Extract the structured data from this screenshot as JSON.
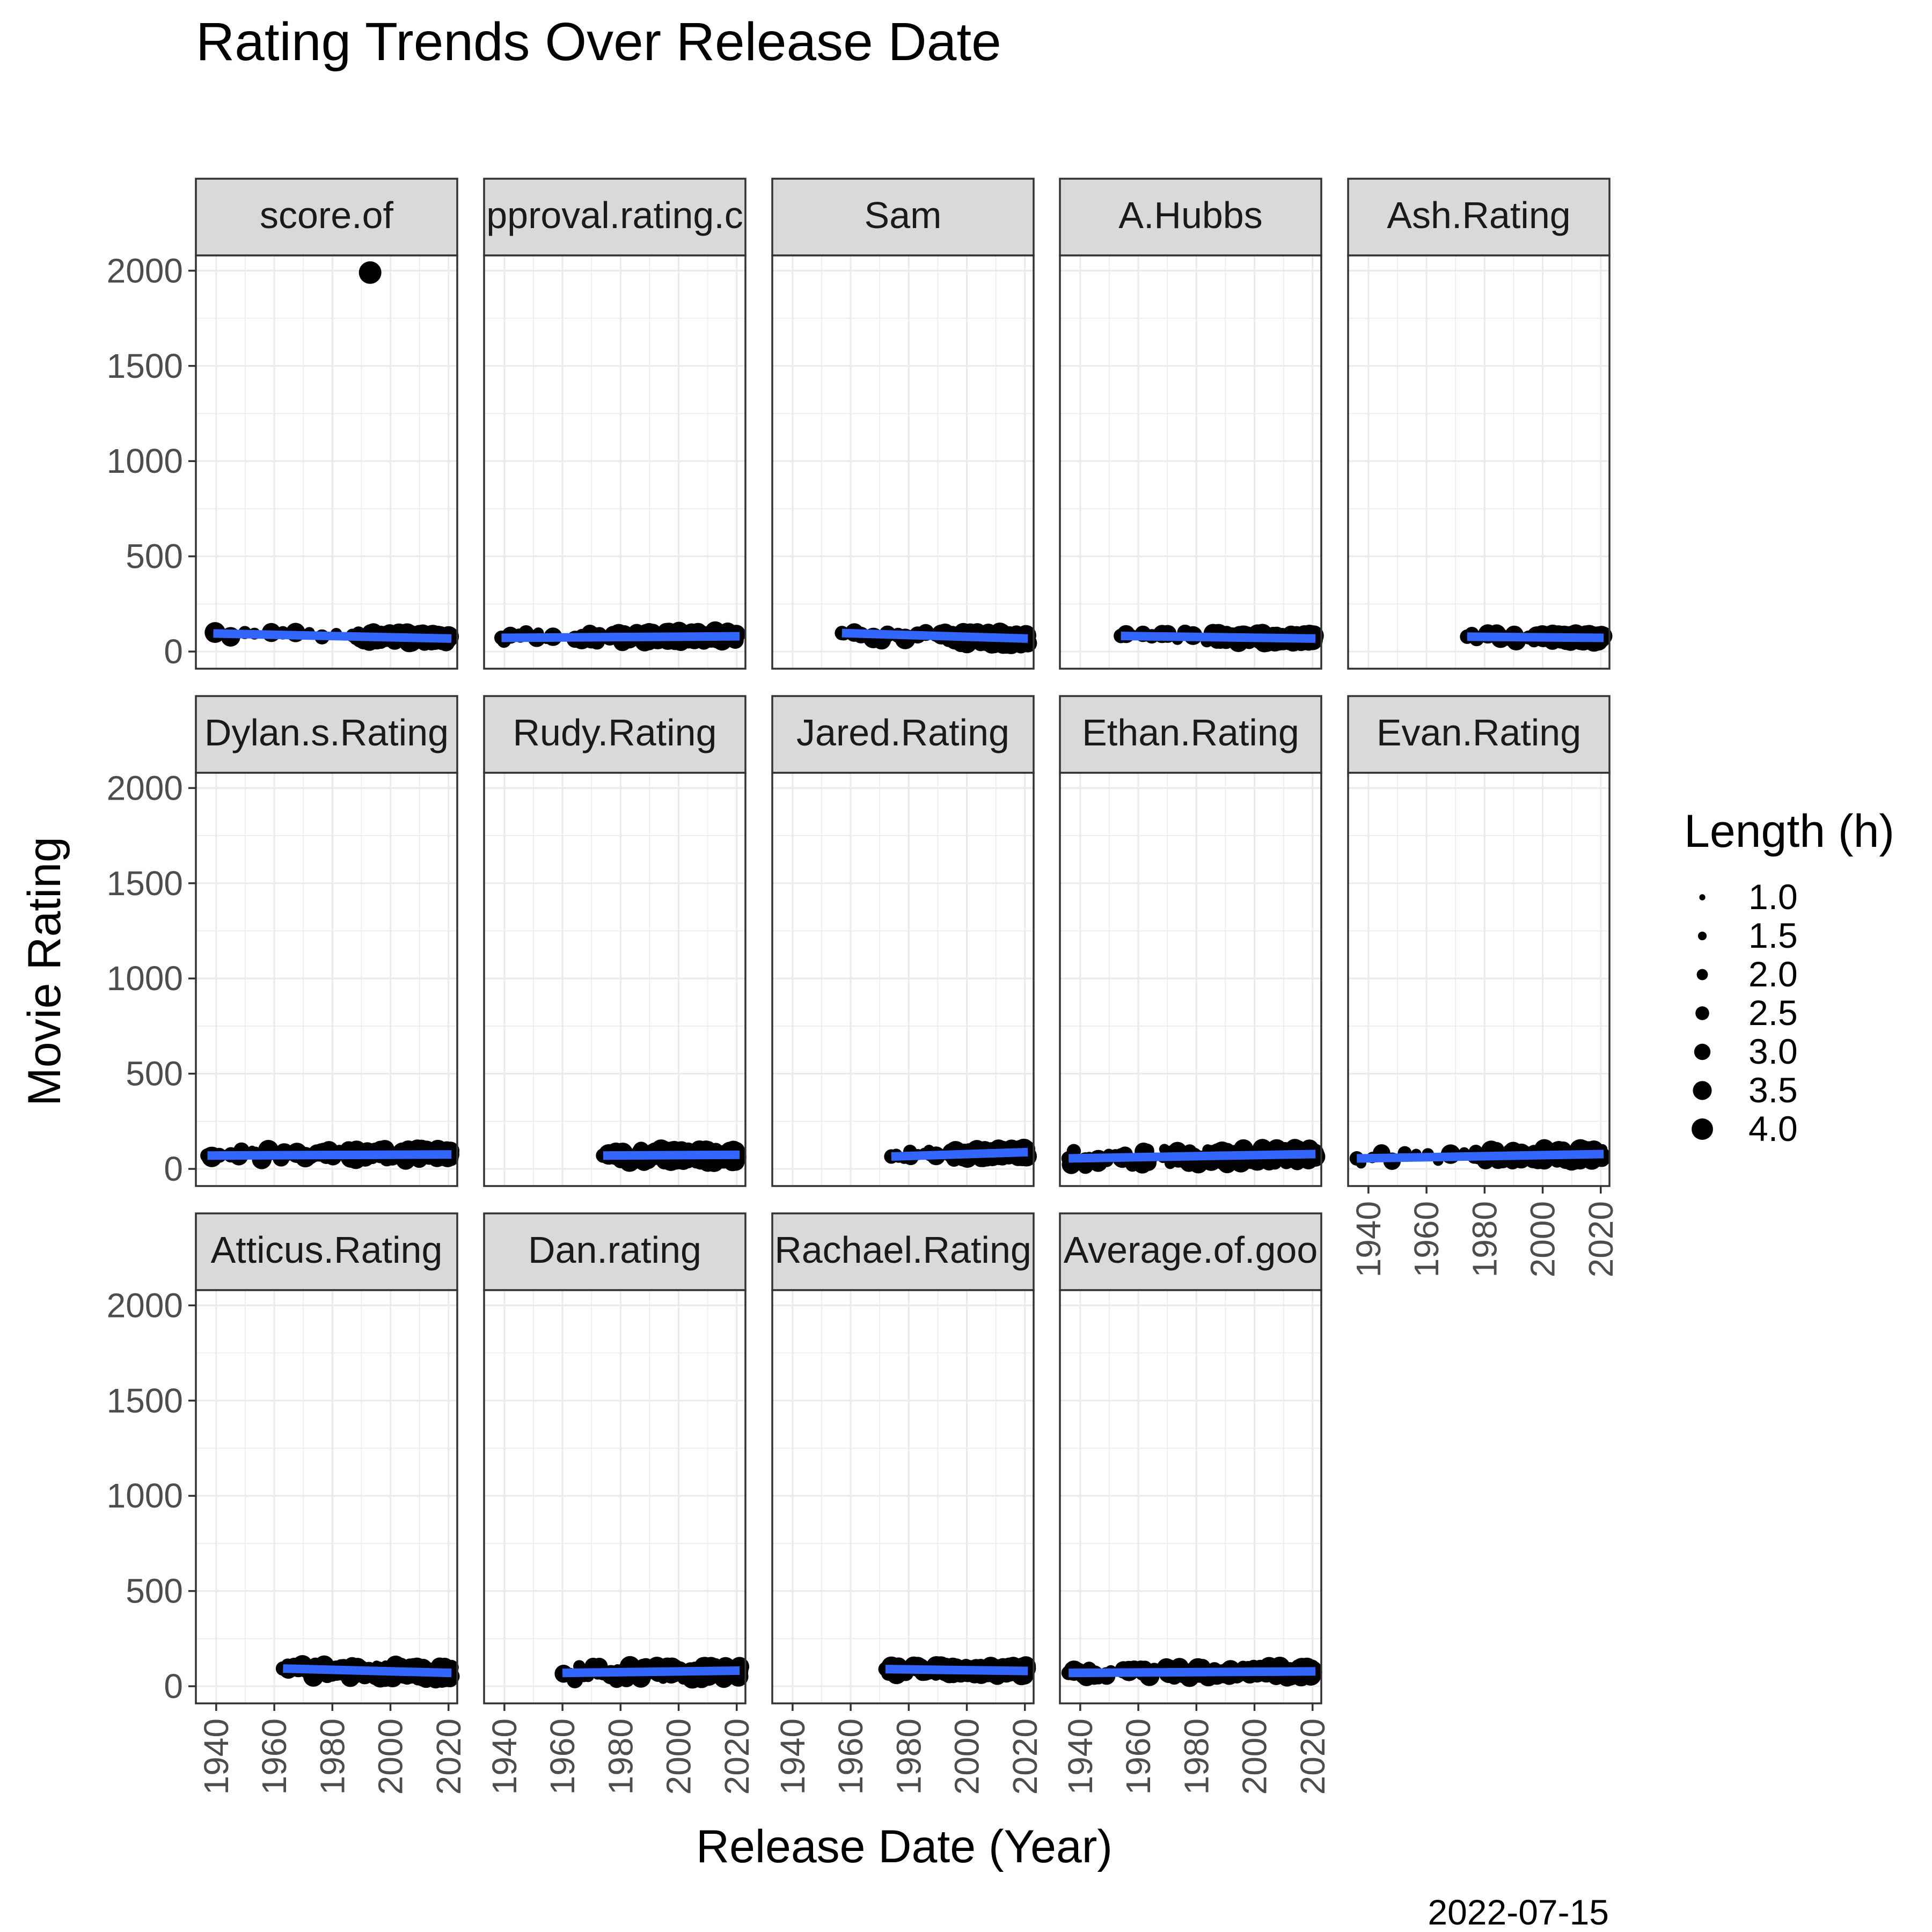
{
  "chart_data": {
    "type": "scatter",
    "title": "Rating Trends Over Release Date",
    "xlabel": "Release Date (Year)",
    "ylabel": "Movie Rating",
    "caption": "2022-07-15",
    "xlim": [
      1933,
      2023
    ],
    "ylim": [
      -90,
      2080
    ],
    "x_ticks": [
      1940,
      1960,
      1980,
      2000,
      2020
    ],
    "y_ticks": [
      0,
      500,
      1000,
      1500,
      2000
    ],
    "grid": true,
    "legend": {
      "title": "Length (h)",
      "position": "right",
      "entries": [
        {
          "label": "1.0",
          "value": 1.0
        },
        {
          "label": "1.5",
          "value": 1.5
        },
        {
          "label": "2.0",
          "value": 2.0
        },
        {
          "label": "2.5",
          "value": 2.5
        },
        {
          "label": "3.0",
          "value": 3.0
        },
        {
          "label": "3.5",
          "value": 3.5
        },
        {
          "label": "4.0",
          "value": 4.0
        }
      ]
    },
    "point_color": "#000000",
    "trend_color": "#3366FF",
    "panels": [
      {
        "name": "score.of",
        "x_range": [
          1939,
          2021
        ],
        "trend": [
          95,
          68
        ],
        "band": [
          40,
          100
        ],
        "sparse_until": 1985,
        "outliers": [
          {
            "x": 1993,
            "y": 1990,
            "size": 2.5
          }
        ]
      },
      {
        "name": "pproval.rating.c",
        "x_range": [
          1939,
          2021
        ],
        "trend": [
          72,
          80
        ],
        "band": [
          35,
          105
        ],
        "sparse_until": 1960,
        "outliers": []
      },
      {
        "name": "Sam",
        "x_range": [
          1957,
          2021
        ],
        "trend": [
          97,
          68
        ],
        "band": [
          10,
          100
        ],
        "sparse_until": 1988,
        "outliers": []
      },
      {
        "name": "A.Hubbs",
        "x_range": [
          1954,
          2021
        ],
        "trend": [
          82,
          68
        ],
        "band": [
          40,
          100
        ],
        "sparse_until": 1985,
        "outliers": []
      },
      {
        "name": "Ash.Rating",
        "x_range": [
          1974,
          2021
        ],
        "trend": [
          78,
          72
        ],
        "band": [
          45,
          95
        ],
        "sparse_until": 1995,
        "outliers": []
      },
      {
        "name": "Dylan.s.Rating",
        "x_range": [
          1937,
          2021
        ],
        "trend": [
          70,
          76
        ],
        "band": [
          35,
          105
        ],
        "sparse_until": 1960,
        "outliers": []
      },
      {
        "name": "Rudy.Rating",
        "x_range": [
          1974,
          2021
        ],
        "trend": [
          70,
          74
        ],
        "band": [
          0,
          100
        ],
        "sparse_until": 1980,
        "outliers": []
      },
      {
        "name": "Jared.Rating",
        "x_range": [
          1974,
          2021
        ],
        "trend": [
          65,
          88
        ],
        "band": [
          40,
          105
        ],
        "sparse_until": 1990,
        "outliers": []
      },
      {
        "name": "Ethan.Rating",
        "x_range": [
          1936,
          2021
        ],
        "trend": [
          55,
          78
        ],
        "band": [
          0,
          105
        ],
        "sparse_until": 1950,
        "outliers": []
      },
      {
        "name": "Evan.Rating",
        "x_range": [
          1936,
          2021
        ],
        "trend": [
          55,
          78
        ],
        "band": [
          20,
          105
        ],
        "sparse_until": 1975,
        "outliers": []
      },
      {
        "name": "Atticus.Rating",
        "x_range": [
          1963,
          2021
        ],
        "trend": [
          93,
          70
        ],
        "band": [
          15,
          110
        ],
        "sparse_until": 1968,
        "outliers": []
      },
      {
        "name": "Dan.rating",
        "x_range": [
          1960,
          2021
        ],
        "trend": [
          70,
          82
        ],
        "band": [
          5,
          105
        ],
        "sparse_until": 1972,
        "outliers": []
      },
      {
        "name": "Rachael.Rating",
        "x_range": [
          1972,
          2021
        ],
        "trend": [
          90,
          80
        ],
        "band": [
          40,
          105
        ],
        "sparse_until": 1978,
        "outliers": []
      },
      {
        "name": "Average.of.goo",
        "x_range": [
          1936,
          2021
        ],
        "trend": [
          70,
          78
        ],
        "band": [
          35,
          105
        ],
        "sparse_until": 1950,
        "outliers": []
      }
    ]
  }
}
